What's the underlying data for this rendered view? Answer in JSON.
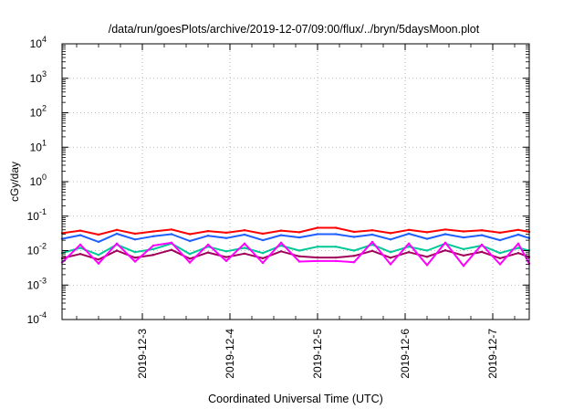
{
  "chart_data": {
    "type": "line",
    "title": "/data/run/goesPlots/archive/2019-12-07/09:00/flux/../bryn/5daysMoon.plot",
    "xlabel": "Coordinated Universal Time (UTC)",
    "ylabel": "cGy/day",
    "yscale": "log",
    "ylim": [
      0.0001,
      10000
    ],
    "ytick_exponents": [
      "-4",
      "-3",
      "-2",
      "-1",
      "0",
      "1",
      "2",
      "3",
      "4"
    ],
    "ytick_base": "10",
    "xlim": [
      "2019-12-02T02:00",
      "2019-12-07T10:00"
    ],
    "xtick_labels": [
      "2019-12-3",
      "2019-12-4",
      "2019-12-5",
      "2019-12-6",
      "2019-12-7"
    ],
    "xtick_dates": [
      "2019-12-03T00:00",
      "2019-12-04T00:00",
      "2019-12-05T00:00",
      "2019-12-06T00:00",
      "2019-12-07T00:00"
    ],
    "grid": true,
    "series_colors": [
      "#ff0000",
      "#1f5fff",
      "#00c896",
      "#a0005a",
      "#ff00ff"
    ],
    "series": [
      {
        "color": "#ff0000",
        "x": [
          "2019-12-02T02:00",
          "2019-12-02T07:00",
          "2019-12-02T12:00",
          "2019-12-02T17:00",
          "2019-12-02T22:00",
          "2019-12-03T03:00",
          "2019-12-03T08:00",
          "2019-12-03T13:00",
          "2019-12-03T18:00",
          "2019-12-03T23:00",
          "2019-12-04T04:00",
          "2019-12-04T09:00",
          "2019-12-04T14:00",
          "2019-12-04T19:00",
          "2019-12-05T00:00",
          "2019-12-05T05:00",
          "2019-12-05T10:00",
          "2019-12-05T15:00",
          "2019-12-05T20:00",
          "2019-12-06T01:00",
          "2019-12-06T06:00",
          "2019-12-06T11:00",
          "2019-12-06T16:00",
          "2019-12-06T21:00",
          "2019-12-07T02:00",
          "2019-12-07T07:00",
          "2019-12-07T10:00"
        ],
        "values": [
          0.032,
          0.038,
          0.029,
          0.04,
          0.031,
          0.036,
          0.041,
          0.03,
          0.037,
          0.033,
          0.039,
          0.031,
          0.038,
          0.034,
          0.046,
          0.046,
          0.035,
          0.039,
          0.032,
          0.04,
          0.034,
          0.041,
          0.036,
          0.039,
          0.033,
          0.04,
          0.035
        ]
      },
      {
        "color": "#1f5fff",
        "x": [
          "2019-12-02T02:00",
          "2019-12-02T07:00",
          "2019-12-02T12:00",
          "2019-12-02T17:00",
          "2019-12-02T22:00",
          "2019-12-03T03:00",
          "2019-12-03T08:00",
          "2019-12-03T13:00",
          "2019-12-03T18:00",
          "2019-12-03T23:00",
          "2019-12-04T04:00",
          "2019-12-04T09:00",
          "2019-12-04T14:00",
          "2019-12-04T19:00",
          "2019-12-05T00:00",
          "2019-12-05T05:00",
          "2019-12-05T10:00",
          "2019-12-05T15:00",
          "2019-12-05T20:00",
          "2019-12-06T01:00",
          "2019-12-06T06:00",
          "2019-12-06T11:00",
          "2019-12-06T16:00",
          "2019-12-06T21:00",
          "2019-12-07T02:00",
          "2019-12-07T07:00",
          "2019-12-07T10:00"
        ],
        "values": [
          0.022,
          0.028,
          0.018,
          0.031,
          0.021,
          0.026,
          0.03,
          0.019,
          0.027,
          0.023,
          0.029,
          0.02,
          0.028,
          0.024,
          0.03,
          0.03,
          0.025,
          0.029,
          0.021,
          0.031,
          0.022,
          0.03,
          0.024,
          0.028,
          0.02,
          0.029,
          0.023
        ]
      },
      {
        "color": "#00c896",
        "x": [
          "2019-12-02T02:00",
          "2019-12-02T07:00",
          "2019-12-02T12:00",
          "2019-12-02T17:00",
          "2019-12-02T22:00",
          "2019-12-03T03:00",
          "2019-12-03T08:00",
          "2019-12-03T13:00",
          "2019-12-03T18:00",
          "2019-12-03T23:00",
          "2019-12-04T04:00",
          "2019-12-04T09:00",
          "2019-12-04T14:00",
          "2019-12-04T19:00",
          "2019-12-05T00:00",
          "2019-12-05T05:00",
          "2019-12-05T10:00",
          "2019-12-05T15:00",
          "2019-12-05T20:00",
          "2019-12-06T01:00",
          "2019-12-06T06:00",
          "2019-12-06T11:00",
          "2019-12-06T16:00",
          "2019-12-06T21:00",
          "2019-12-07T02:00",
          "2019-12-07T07:00",
          "2019-12-07T10:00"
        ],
        "values": [
          0.0085,
          0.012,
          0.0075,
          0.015,
          0.009,
          0.011,
          0.016,
          0.008,
          0.013,
          0.0095,
          0.012,
          0.0085,
          0.014,
          0.01,
          0.013,
          0.013,
          0.01,
          0.015,
          0.009,
          0.013,
          0.01,
          0.016,
          0.011,
          0.014,
          0.0085,
          0.012,
          0.01
        ]
      },
      {
        "color": "#a0005a",
        "x": [
          "2019-12-02T02:00",
          "2019-12-02T07:00",
          "2019-12-02T12:00",
          "2019-12-02T17:00",
          "2019-12-02T22:00",
          "2019-12-03T03:00",
          "2019-12-03T08:00",
          "2019-12-03T13:00",
          "2019-12-03T18:00",
          "2019-12-03T23:00",
          "2019-12-04T04:00",
          "2019-12-04T09:00",
          "2019-12-04T14:00",
          "2019-12-04T19:00",
          "2019-12-05T00:00",
          "2019-12-05T05:00",
          "2019-12-05T10:00",
          "2019-12-05T15:00",
          "2019-12-05T20:00",
          "2019-12-06T01:00",
          "2019-12-06T06:00",
          "2019-12-06T11:00",
          "2019-12-06T16:00",
          "2019-12-06T21:00",
          "2019-12-07T02:00",
          "2019-12-07T07:00",
          "2019-12-07T10:00"
        ],
        "values": [
          0.006,
          0.008,
          0.0055,
          0.01,
          0.0062,
          0.0075,
          0.0105,
          0.0058,
          0.0088,
          0.0065,
          0.0082,
          0.006,
          0.0095,
          0.0068,
          0.0063,
          0.0063,
          0.007,
          0.0098,
          0.0062,
          0.009,
          0.0066,
          0.0102,
          0.0072,
          0.0092,
          0.006,
          0.0085,
          0.0065
        ]
      },
      {
        "color": "#ff00ff",
        "x": [
          "2019-12-02T02:00",
          "2019-12-02T07:00",
          "2019-12-02T12:00",
          "2019-12-02T17:00",
          "2019-12-02T22:00",
          "2019-12-03T03:00",
          "2019-12-03T08:00",
          "2019-12-03T13:00",
          "2019-12-03T18:00",
          "2019-12-03T23:00",
          "2019-12-04T04:00",
          "2019-12-04T09:00",
          "2019-12-04T14:00",
          "2019-12-04T19:00",
          "2019-12-05T00:00",
          "2019-12-05T05:00",
          "2019-12-05T10:00",
          "2019-12-05T15:00",
          "2019-12-05T20:00",
          "2019-12-06T01:00",
          "2019-12-06T06:00",
          "2019-12-06T11:00",
          "2019-12-06T16:00",
          "2019-12-06T21:00",
          "2019-12-07T02:00",
          "2019-12-07T07:00",
          "2019-12-07T10:00"
        ],
        "values": [
          0.0045,
          0.015,
          0.0042,
          0.016,
          0.0048,
          0.014,
          0.017,
          0.0045,
          0.015,
          0.005,
          0.016,
          0.0044,
          0.017,
          0.0048,
          0.005,
          0.005,
          0.0046,
          0.018,
          0.004,
          0.016,
          0.0038,
          0.017,
          0.0036,
          0.015,
          0.004,
          0.016,
          0.0042
        ]
      }
    ]
  }
}
